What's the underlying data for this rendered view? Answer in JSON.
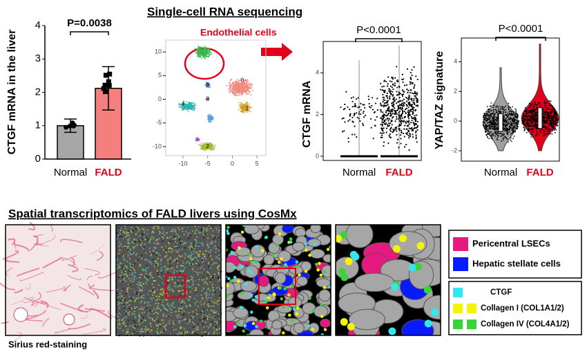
{
  "figure": {
    "title_sc": "Single-cell RNA sequencing",
    "title_spatial": "Spatial transcriptomics of FALD livers using CosMx",
    "endothelial": "Endothelial cells",
    "sirius": "Sirius red-staining"
  },
  "chart_data": [
    {
      "type": "bar",
      "ylabel": "CTGF mRNA in the liver",
      "categories": [
        "Normal",
        "FALD"
      ],
      "values": [
        1.0,
        2.12
      ],
      "errors": [
        0.2,
        0.65
      ],
      "colors": [
        "#a6a6a6",
        "#f4807d"
      ],
      "category_colors": [
        "#000000",
        "#e3001b"
      ],
      "ylim": [
        0,
        4
      ],
      "yticks": [
        0,
        1,
        2,
        3,
        4
      ],
      "annotation": "P=0.0038"
    },
    {
      "type": "umap",
      "xlim": [
        -13.5,
        6.8
      ],
      "ylim": [
        -11.9,
        12.5
      ],
      "xticks": [
        -10,
        -5,
        0,
        5
      ],
      "yticks": [
        10,
        5,
        0,
        -5,
        -10
      ],
      "cluster_labels": [
        "0",
        "1",
        "2",
        "4",
        "6",
        "8"
      ]
    },
    {
      "type": "strip",
      "ylabel": "CTGF mRNA",
      "categories": [
        "Normal",
        "FALD"
      ],
      "category_colors": [
        "#000000",
        "#e3001b"
      ],
      "ylim": [
        -0.2,
        5.5
      ],
      "yticks": [
        0,
        2,
        4
      ],
      "annotation": "P<0.0001"
    },
    {
      "type": "violin",
      "ylabel": "YAP/TAZ signature",
      "categories": [
        "Normal",
        "FALD"
      ],
      "category_colors": [
        "#000000",
        "#e3001b"
      ],
      "colors": [
        "#a0a0a0",
        "#e3001b"
      ],
      "ylim": [
        -2.7,
        5.6
      ],
      "yticks": [
        -2,
        0,
        2,
        4
      ],
      "annotation": "P<0.0001"
    }
  ],
  "legend": {
    "cells": [
      {
        "name": "Pericentral LSECs",
        "color": "#e5197f"
      },
      {
        "name": "Hepatic stellate cells",
        "color": "#0a1aff"
      }
    ],
    "genes": [
      {
        "name": "CTGF",
        "color": "#33e6f0"
      },
      {
        "name": "Collagen I (COL1A1/2)",
        "color": "#f5f500"
      },
      {
        "name": "Collagen IV (COL4A1/2)",
        "color": "#3ad43a"
      }
    ]
  }
}
